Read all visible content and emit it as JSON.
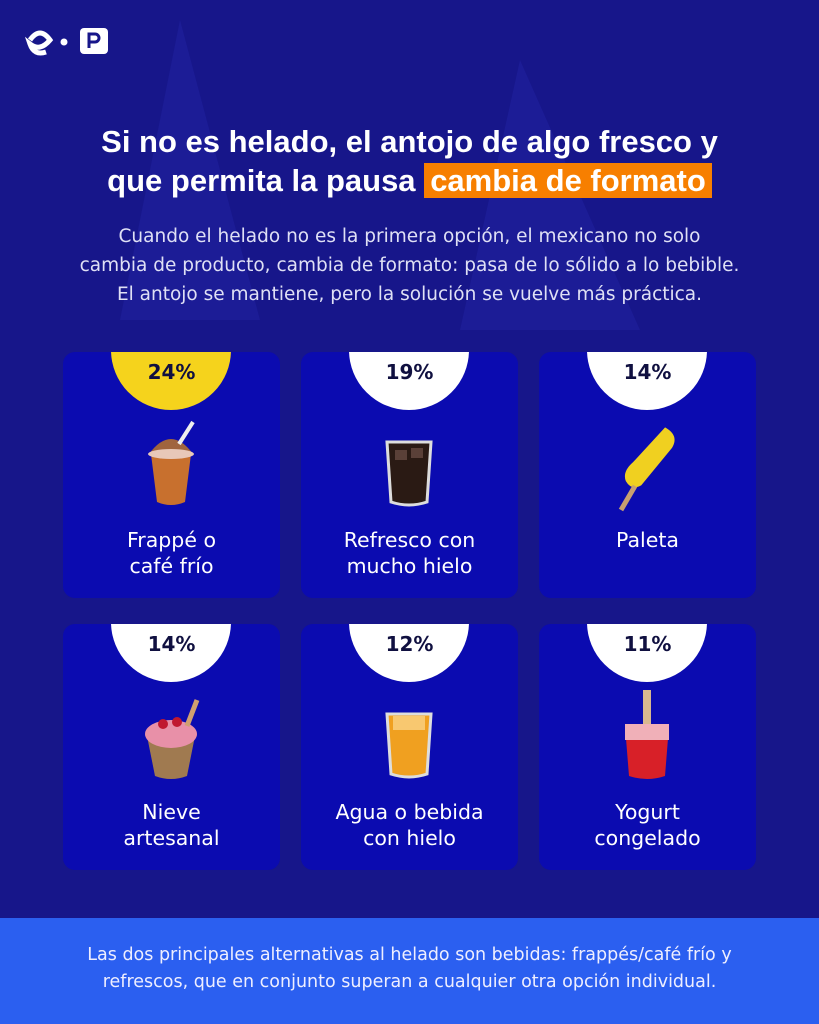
{
  "header": {
    "title_line1": "Si no es helado, el antojo de algo fresco y",
    "title_line2": "que permita la pausa",
    "title_highlight": "cambia de formato",
    "subtitle_lines": [
      "Cuando el helado no es la primera opción, el mexicano no solo",
      "cambia de producto, cambia de formato: pasa de lo sólido a lo bebible.",
      "El antojo se mantiene, pero la solución se vuelve más práctica."
    ]
  },
  "cards": [
    {
      "percent": "24%",
      "label_lines": [
        "Frappé o",
        "café frío"
      ],
      "highlight": true
    },
    {
      "percent": "19%",
      "label_lines": [
        "Refresco con",
        "mucho hielo"
      ],
      "highlight": false
    },
    {
      "percent": "14%",
      "label_lines": [
        "Paleta"
      ],
      "highlight": false
    },
    {
      "percent": "14%",
      "label_lines": [
        "Nieve",
        "artesanal"
      ],
      "highlight": false
    },
    {
      "percent": "12%",
      "label_lines": [
        "Agua o bebida",
        "con hielo"
      ],
      "highlight": false
    },
    {
      "percent": "11%",
      "label_lines": [
        "Yogurt",
        "congelado"
      ],
      "highlight": false
    }
  ],
  "footer": {
    "lines": [
      "Las dos principales alternativas al helado son bebidas: frappés/café frío y",
      "refrescos, que en conjunto superan a cualquier otra opción individual."
    ]
  }
}
